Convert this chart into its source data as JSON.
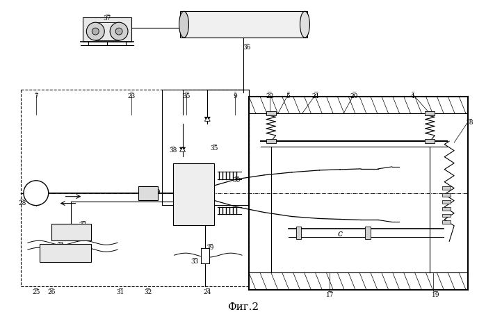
{
  "title": "Фиг.2",
  "bg_color": "#ffffff",
  "line_color": "#000000",
  "fig_width": 6.99,
  "fig_height": 4.59,
  "dpi": 100
}
